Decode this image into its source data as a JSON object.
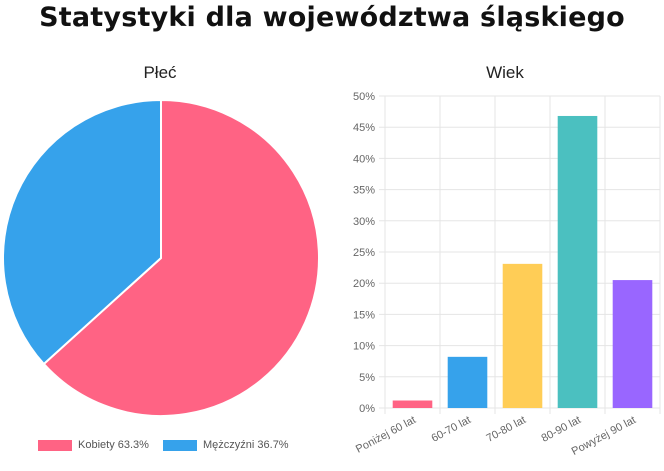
{
  "page": {
    "title": "Statystyki dla województwa śląskiego"
  },
  "colors": {
    "kobiety": "#ff6384",
    "mezczyzni": "#36a2eb",
    "bars": [
      "#ff6384",
      "#36a2eb",
      "#ffcd56",
      "#4bc0c0",
      "#9966ff"
    ],
    "grid": "#e5e5e5",
    "axis_text": "#666666"
  },
  "chart_data": [
    {
      "type": "pie",
      "title": "Płeć",
      "labels": [
        "Kobiety",
        "Mężczyźni"
      ],
      "values": [
        63.3,
        36.7
      ],
      "legend": [
        "Kobiety 63.3%",
        "Mężczyźni 36.7%"
      ],
      "legend_position": "bottom"
    },
    {
      "type": "bar",
      "title": "Wiek",
      "categories": [
        "Poniżej 60 lat",
        "60-70 lat",
        "70-80 lat",
        "80-90 lat",
        "Powyżej 90 lat"
      ],
      "values": [
        1.2,
        8.2,
        23.1,
        46.8,
        20.5
      ],
      "ylim": [
        0,
        50
      ],
      "yticks": [
        0,
        5,
        10,
        15,
        20,
        25,
        30,
        35,
        40,
        45,
        50
      ],
      "ytick_labels": [
        "0%",
        "5%",
        "10%",
        "15%",
        "20%",
        "25%",
        "30%",
        "35%",
        "40%",
        "45%",
        "50%"
      ],
      "grid": true
    }
  ]
}
